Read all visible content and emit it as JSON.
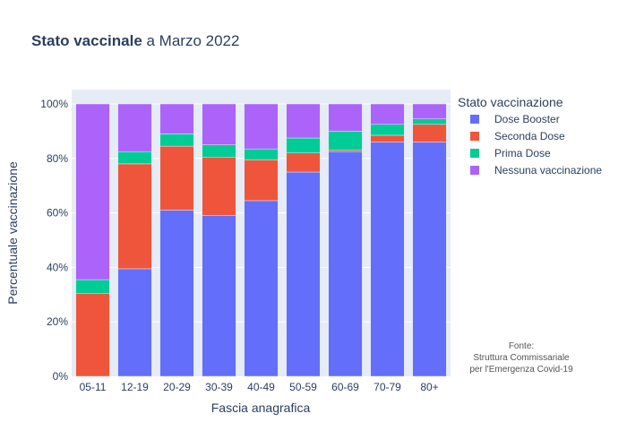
{
  "chart_data": {
    "type": "bar",
    "stacked": true,
    "title_bold": "Stato vaccinale",
    "title_rest": " a Marzo 2022",
    "xlabel": "Fascia anagrafica",
    "ylabel": "Percentuale vaccinazione",
    "ylim": [
      0,
      100
    ],
    "y_ticks": [
      "0%",
      "20%",
      "40%",
      "60%",
      "80%",
      "100%"
    ],
    "y_tick_values": [
      0,
      20,
      40,
      60,
      80,
      100
    ],
    "categories": [
      "05-11",
      "12-19",
      "20-29",
      "30-39",
      "40-49",
      "50-59",
      "60-69",
      "70-79",
      "80+"
    ],
    "legend_title": "Stato vaccinazione",
    "legend_position": "right",
    "grid": true,
    "series": [
      {
        "name": "Dose Booster",
        "color": "#636efa",
        "values": [
          0,
          39.5,
          61,
          59,
          64.5,
          75,
          82.5,
          86,
          86
        ]
      },
      {
        "name": "Seconda Dose",
        "color": "#ef553b",
        "values": [
          30.5,
          38.5,
          23.5,
          21.5,
          15,
          7,
          0.5,
          2.5,
          6.5
        ]
      },
      {
        "name": "Prima Dose",
        "color": "#00cc96",
        "values": [
          5,
          4.5,
          4.5,
          4.5,
          4,
          5.5,
          7,
          4,
          2
        ]
      },
      {
        "name": "Nessuna vaccinazione",
        "color": "#ab63fa",
        "values": [
          64.5,
          17.5,
          11,
          15,
          16.5,
          12.5,
          10,
          7.5,
          5.5
        ]
      }
    ],
    "annotation": [
      "Fonte:",
      "Struttura Commissariale",
      "per l'Emergenza Covid-19"
    ]
  },
  "colors": {
    "plot_background": "#e5ecf6",
    "grid": "#ffffff",
    "text": "#2a3f5f"
  }
}
